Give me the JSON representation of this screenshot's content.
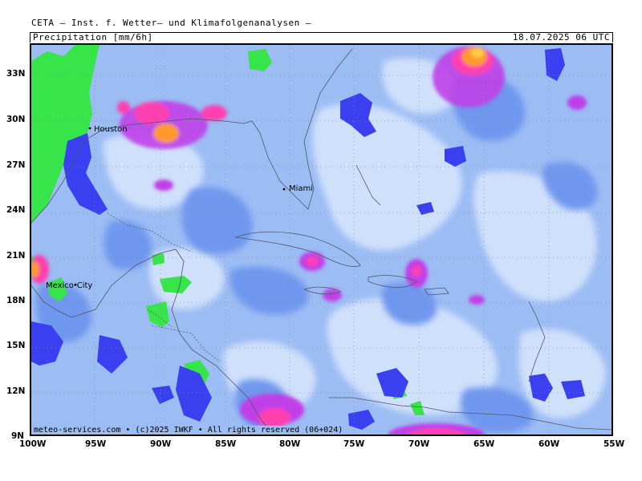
{
  "header": {
    "title": "CETA – Inst. f. Wetter– und Klimafolgenanalysen –",
    "parameter": "Precipitation [mm/6h]",
    "valid_time": "18.07.2025 06 UTC"
  },
  "map": {
    "lat_labels": [
      "33N",
      "30N",
      "27N",
      "24N",
      "21N",
      "18N",
      "15N",
      "12N",
      "9N"
    ],
    "lon_labels": [
      "100W",
      "95W",
      "90W",
      "85W",
      "80W",
      "75W",
      "70W",
      "65W",
      "60W",
      "55W"
    ],
    "cities": [
      {
        "name": "Houston"
      },
      {
        "name": "Miami"
      },
      {
        "name": "Mexico-City"
      }
    ],
    "colors": {
      "light": "#cfe0fb",
      "medium": "#9cbcf4",
      "dark": "#6f97ee",
      "deep": "#3a3ff0",
      "green": "#37e44a",
      "magenta": "#c040e8",
      "pink": "#ff3fb0",
      "orange": "#ff9a2a",
      "yellow": "#ffd040"
    }
  },
  "footer": {
    "credit": "meteo-services.com • (c)2025 IWKF • All rights reserved (06+024)"
  }
}
